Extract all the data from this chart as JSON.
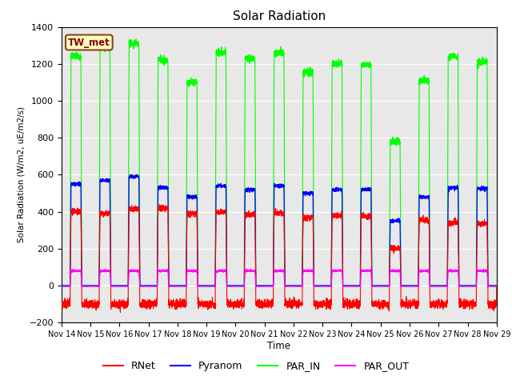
{
  "title": "Solar Radiation",
  "ylabel": "Solar Radiation (W/m2, uE/m2/s)",
  "xlabel": "Time",
  "ylim": [
    -200,
    1400
  ],
  "x_tick_labels": [
    "Nov 14",
    "Nov 15",
    "Nov 16",
    "Nov 17",
    "Nov 18",
    "Nov 19",
    "Nov 20",
    "Nov 21",
    "Nov 22",
    "Nov 23",
    "Nov 24",
    "Nov 25",
    "Nov 26",
    "Nov 27",
    "Nov 28",
    "Nov 29"
  ],
  "station_label": "TW_met",
  "colors": {
    "RNet": "#ff0000",
    "Pyranom": "#0000ff",
    "PAR_IN": "#00ff00",
    "PAR_OUT": "#ff00ff"
  },
  "background_color": "#e8e8e8",
  "title_fontsize": 11,
  "n_days": 15,
  "par_in_peaks": [
    1240,
    1290,
    1310,
    1220,
    1100,
    1260,
    1230,
    1260,
    1155,
    1200,
    1195,
    780,
    1110,
    1240,
    1210
  ],
  "pyranom_peaks": [
    550,
    570,
    590,
    530,
    480,
    540,
    520,
    540,
    500,
    520,
    520,
    350,
    480,
    530,
    525
  ],
  "rnet_peaks": [
    400,
    390,
    415,
    420,
    390,
    400,
    385,
    390,
    370,
    380,
    375,
    200,
    355,
    340,
    335
  ],
  "rnet_night": -100,
  "par_out_day": 80,
  "par_out_night": -5,
  "day_start": 0.3,
  "day_end": 0.7
}
